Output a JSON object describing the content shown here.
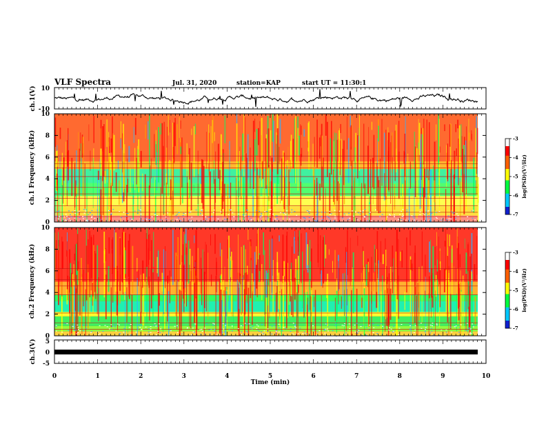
{
  "header": {
    "title": "VLF Spectra",
    "date": "Jul. 31, 2020",
    "station": "station=KAP",
    "start": "start UT = 11:30:1"
  },
  "chart_data": [
    {
      "type": "line",
      "id": "ch1-waveform",
      "ylabel": "ch.1(V)",
      "ylim": [
        -10,
        10
      ],
      "yticks": [
        "10",
        "-10"
      ],
      "xlim": [
        0,
        10
      ],
      "note_series": "noisy waveform roughly between -5 and 5 V"
    },
    {
      "type": "heatmap",
      "id": "ch1-spectrogram",
      "ylabel": "ch.1 Frequency (kHz)",
      "ylim": [
        0,
        10
      ],
      "yticks": [
        "0",
        "2",
        "4",
        "6",
        "8",
        "10"
      ],
      "xlim": [
        0,
        10
      ],
      "colorbar": {
        "label": "log(PSD)(V²/Hz)",
        "range": [
          -7,
          -3
        ],
        "ticks": [
          "-3",
          "-4",
          "-5",
          "-6",
          "-7"
        ]
      }
    },
    {
      "type": "heatmap",
      "id": "ch2-spectrogram",
      "ylabel": "ch.2 Frequency (kHz)",
      "ylim": [
        0,
        10
      ],
      "yticks": [
        "0",
        "2",
        "4",
        "6",
        "8",
        "10"
      ],
      "xlim": [
        0,
        10
      ],
      "colorbar": {
        "label": "log(PSD)(V²/Hz)",
        "range": [
          -7,
          -3
        ],
        "ticks": [
          "-3",
          "-4",
          "-5",
          "-6",
          "-7"
        ]
      }
    },
    {
      "type": "line",
      "id": "ch3-waveform",
      "ylabel": "ch.3(V)",
      "ylim": [
        -5,
        5
      ],
      "yticks": [
        "5",
        "0",
        "-5"
      ],
      "xlim": [
        0,
        10
      ],
      "xlabel": "Time (min)",
      "xticks": [
        "0",
        "1",
        "2",
        "3",
        "4",
        "5",
        "6",
        "7",
        "8",
        "9",
        "10"
      ]
    }
  ]
}
